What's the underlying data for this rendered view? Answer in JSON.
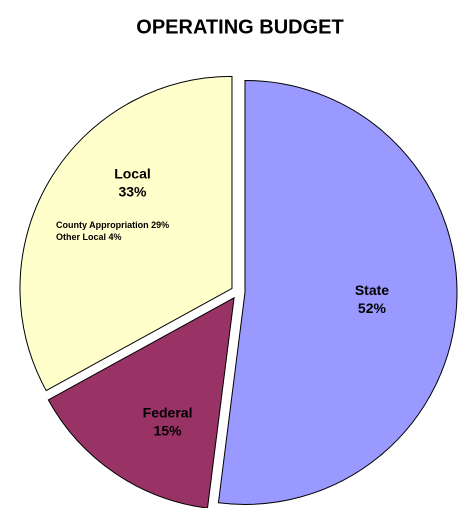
{
  "chart_data": {
    "type": "pie",
    "title": "OPERATING BUDGET",
    "categories": [
      "State",
      "Federal",
      "Local"
    ],
    "values": [
      52,
      15,
      33
    ],
    "value_labels": [
      "52%",
      "15%",
      "33%"
    ],
    "colors": [
      "#9999ff",
      "#993366",
      "#ffffcc"
    ],
    "annotations": [
      "County Appropriation 29%",
      "Other Local 4%"
    ]
  }
}
